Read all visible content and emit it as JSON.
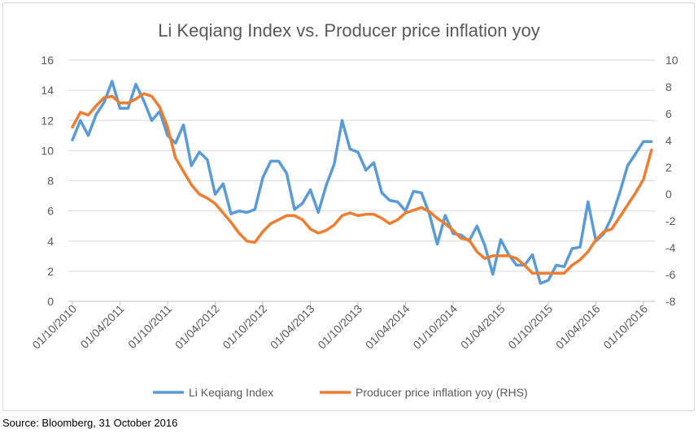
{
  "chart_data": {
    "type": "line",
    "title": "Li Keqiang Index vs. Producer price inflation yoy",
    "x_tick_labels": [
      "01/10/2010",
      "01/04/2011",
      "01/10/2011",
      "01/04/2012",
      "01/10/2012",
      "01/04/2013",
      "01/10/2013",
      "01/04/2014",
      "01/10/2014",
      "01/04/2015",
      "01/10/2015",
      "01/04/2016",
      "01/10/2016"
    ],
    "y_left": {
      "min": 0,
      "max": 16,
      "ticks": [
        "0",
        "2",
        "4",
        "6",
        "8",
        "10",
        "12",
        "14",
        "16"
      ]
    },
    "y_right": {
      "min": -8,
      "max": 10,
      "ticks": [
        "-8",
        "-6",
        "-4",
        "-2",
        "0",
        "2",
        "4",
        "6",
        "8",
        "10"
      ]
    },
    "grid": true,
    "legend_position": "bottom",
    "x_start": "2010-10",
    "series": [
      {
        "name": "Li Keqiang Index",
        "axis": "left",
        "color": "#5b9bd5",
        "values": [
          10.7,
          12.0,
          11.0,
          12.4,
          13.2,
          14.6,
          12.8,
          12.8,
          14.4,
          13.3,
          12.0,
          12.6,
          11.0,
          10.5,
          11.7,
          9.0,
          9.9,
          9.4,
          7.1,
          7.8,
          5.8,
          6.0,
          5.9,
          6.1,
          8.2,
          9.3,
          9.3,
          8.5,
          6.1,
          6.5,
          7.4,
          5.9,
          7.7,
          9.1,
          12.0,
          10.1,
          9.9,
          8.7,
          9.2,
          7.2,
          6.7,
          6.6,
          6.0,
          7.3,
          7.2,
          5.8,
          3.8,
          5.7,
          4.5,
          4.4,
          4.0,
          5.0,
          3.7,
          1.8,
          4.1,
          3.1,
          2.4,
          2.4,
          3.1,
          1.2,
          1.4,
          2.4,
          2.3,
          3.5,
          3.6,
          6.6,
          4.0,
          4.5,
          5.6,
          7.2,
          9.0,
          9.8,
          10.6,
          10.6
        ]
      },
      {
        "name": "Producer price inflation yoy (RHS)",
        "axis": "right",
        "color": "#ed7d31",
        "values": [
          5.0,
          6.1,
          5.9,
          6.6,
          7.2,
          7.3,
          6.8,
          6.8,
          7.1,
          7.5,
          7.3,
          6.5,
          5.0,
          2.7,
          1.7,
          0.7,
          0.0,
          -0.3,
          -0.7,
          -1.4,
          -2.1,
          -2.9,
          -3.5,
          -3.6,
          -2.8,
          -2.2,
          -1.9,
          -1.6,
          -1.6,
          -1.9,
          -2.6,
          -2.9,
          -2.7,
          -2.3,
          -1.6,
          -1.4,
          -1.6,
          -1.5,
          -1.5,
          -1.8,
          -2.2,
          -1.9,
          -1.4,
          -1.2,
          -1.0,
          -1.3,
          -1.8,
          -2.2,
          -2.7,
          -3.3,
          -3.4,
          -4.3,
          -4.8,
          -4.6,
          -4.6,
          -4.6,
          -4.8,
          -5.3,
          -5.9,
          -5.9,
          -5.9,
          -5.9,
          -5.9,
          -5.3,
          -4.9,
          -4.3,
          -3.4,
          -2.8,
          -2.6,
          -1.7,
          -0.8,
          0.1,
          1.1,
          3.3
        ]
      }
    ]
  },
  "source": "Source: Bloomberg, 31 October 2016"
}
